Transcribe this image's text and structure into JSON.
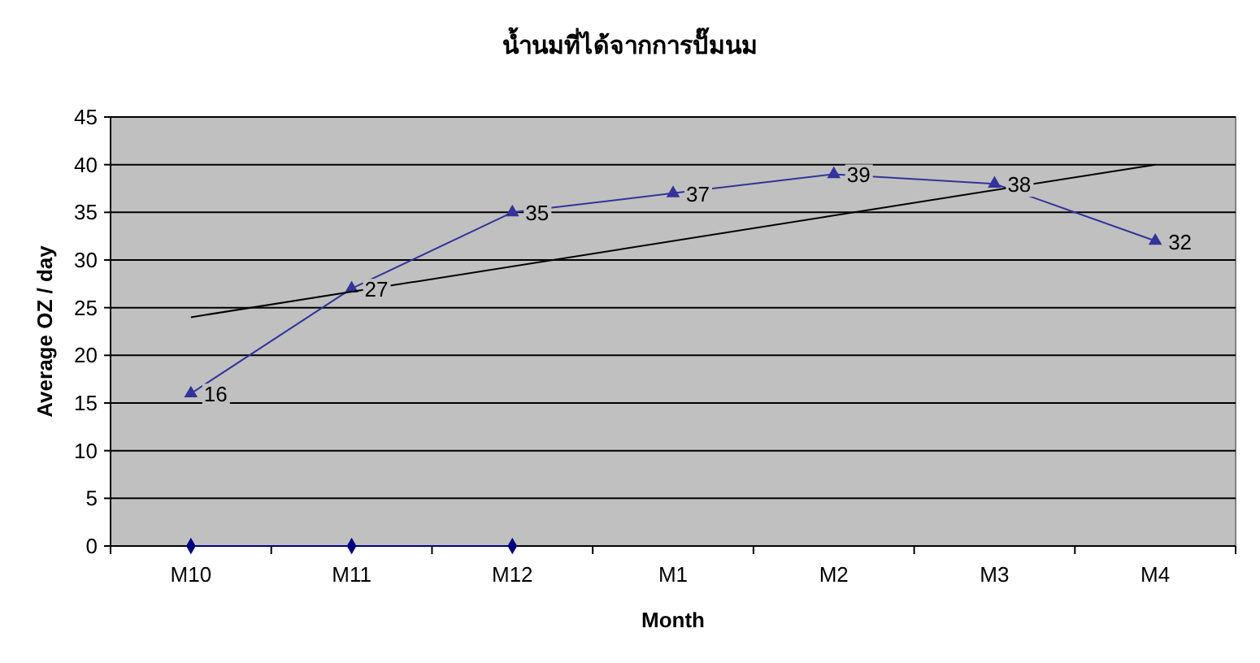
{
  "chart_data": {
    "type": "line",
    "title": "น้ำนมที่ได้จากการปั๊มนม",
    "xlabel": "Month",
    "ylabel": "Average OZ / day",
    "categories": [
      "M10",
      "M11",
      "M12",
      "M1",
      "M2",
      "M3",
      "M4"
    ],
    "series": [
      {
        "color": "#333399",
        "values": [
          16,
          27,
          35,
          37,
          39,
          38,
          32
        ],
        "value_labels": [
          "16",
          "27",
          "35",
          "37",
          "39",
          "38",
          "32"
        ],
        "marker": "triangle"
      },
      {
        "color": "#000080",
        "values": [
          0,
          0,
          0,
          null,
          null,
          null,
          null
        ],
        "marker": "diamond"
      },
      {
        "type": "line",
        "color": "#000000",
        "values": [
          24,
          null,
          null,
          null,
          null,
          null,
          40
        ],
        "marker": "none"
      }
    ],
    "ylim": [
      0,
      45
    ],
    "yticks": [
      0,
      5,
      10,
      15,
      20,
      25,
      30,
      35,
      40,
      45
    ],
    "grid": "y",
    "line_style": "solid"
  }
}
